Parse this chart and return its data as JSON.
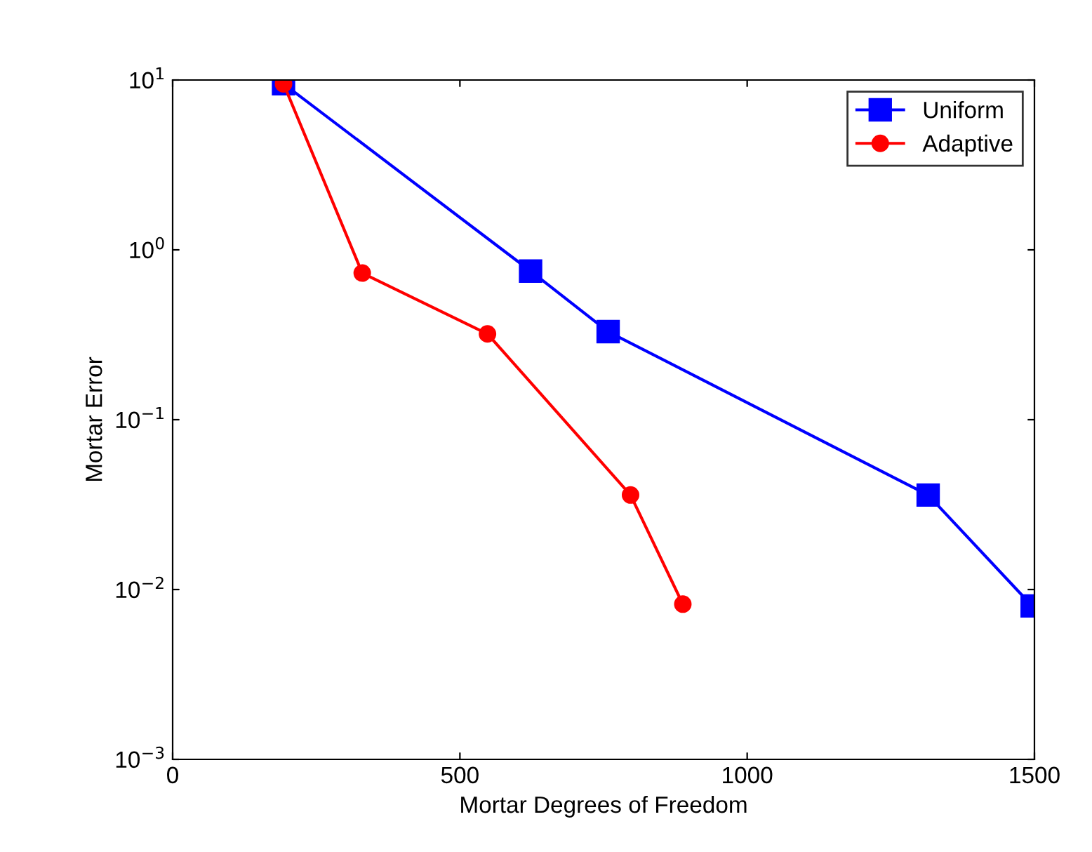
{
  "chart_data": {
    "type": "line",
    "xlabel": "Mortar Degrees of Freedom",
    "ylabel": "Mortar Error",
    "log": "y",
    "xlim": [
      0,
      1500
    ],
    "xticks": [
      0,
      500,
      1000,
      1500
    ],
    "ylim": [
      0.001,
      10
    ],
    "yticks": [
      {
        "value": 0.001,
        "label": "10$^{−3}$"
      },
      {
        "value": 0.01,
        "label": "10$^{−2}$"
      },
      {
        "value": 0.1,
        "label": "10$^{−1}$"
      },
      {
        "value": 1,
        "label": "10$^{0}$"
      },
      {
        "value": 10,
        "label": "10$^{1}$"
      }
    ],
    "legend": "top right",
    "grid": false,
    "series": [
      {
        "name": "Uniform",
        "color": "#0000ff",
        "marker": "square",
        "x": [
          193,
          623,
          758,
          1315,
          1496
        ],
        "values": [
          9.5,
          0.75,
          0.33,
          0.036,
          0.008
        ]
      },
      {
        "name": "Adaptive",
        "color": "#ff0000",
        "marker": "circle",
        "x": [
          193,
          330,
          548,
          797,
          888
        ],
        "values": [
          9.5,
          0.73,
          0.32,
          0.036,
          0.0082
        ]
      }
    ]
  }
}
